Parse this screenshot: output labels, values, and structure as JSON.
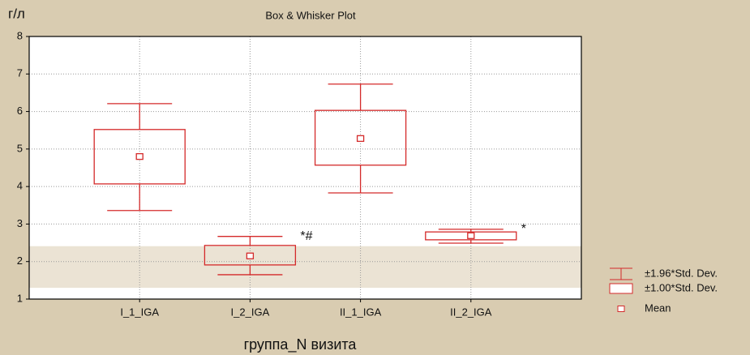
{
  "chart_data": {
    "type": "box",
    "title": "Box & Whisker Plot",
    "y_label": "г/л",
    "x_label": "группа_N визита",
    "categories": [
      "I_1_IGA",
      "I_2_IGA",
      "II_1_IGA",
      "II_2_IGA"
    ],
    "mean": [
      4.8,
      2.15,
      5.28,
      2.69
    ],
    "box_low": [
      4.07,
      1.91,
      4.57,
      2.58
    ],
    "box_high": [
      5.52,
      2.43,
      6.03,
      2.79
    ],
    "whisker_low": [
      3.36,
      1.65,
      3.83,
      2.49
    ],
    "whisker_high": [
      6.21,
      2.67,
      6.73,
      2.86
    ],
    "annotations": [
      null,
      "*#",
      null,
      "*"
    ],
    "reference_band": [
      1.3,
      2.41
    ],
    "color": "#d42a2a",
    "band_color": "#ebe3d4",
    "ylim": [
      1,
      8
    ],
    "yticks": [
      1,
      2,
      3,
      4,
      5,
      6,
      7,
      8
    ],
    "grid": true,
    "legend": [
      "±1.96*Std. Dev.",
      "±1.00*Std. Dev.",
      "Mean"
    ],
    "legend_position": "bottom-right"
  }
}
